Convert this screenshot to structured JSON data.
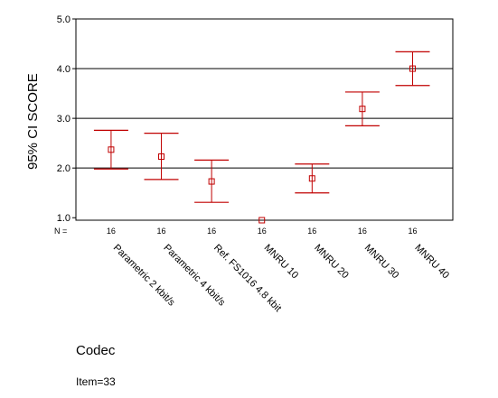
{
  "chart_data": {
    "type": "errorbar",
    "categories": [
      "Parametric 2 kbit/s",
      "Parametric 4 kbit/s",
      "Ref. FS1016 4.8 kbit",
      "MNRU 10",
      "MNRU 20",
      "MNRU 30",
      "MNRU 40"
    ],
    "n_label": "N =",
    "n_values": [
      "16",
      "16",
      "16",
      "16",
      "16",
      "16",
      "16"
    ],
    "mean": [
      2.37,
      2.23,
      1.73,
      0.95,
      1.79,
      3.19,
      4.0
    ],
    "ci_low": [
      1.98,
      1.77,
      1.31,
      0.95,
      1.5,
      2.85,
      3.66
    ],
    "ci_high": [
      2.76,
      2.7,
      2.16,
      0.95,
      2.08,
      3.53,
      4.34
    ],
    "yticks": [
      "1.0",
      "2.0",
      "3.0",
      "4.0",
      "5.0"
    ],
    "ylim": [
      0.95,
      5.0
    ],
    "gridlines": [
      2.0,
      3.0,
      4.0
    ],
    "ylabel": "95% CI SCORE",
    "xlabel": "Codec",
    "colors": {
      "series": "#c00000",
      "axis": "#000000",
      "grid": "#000000"
    }
  },
  "footer": {
    "item": "Item=33"
  }
}
